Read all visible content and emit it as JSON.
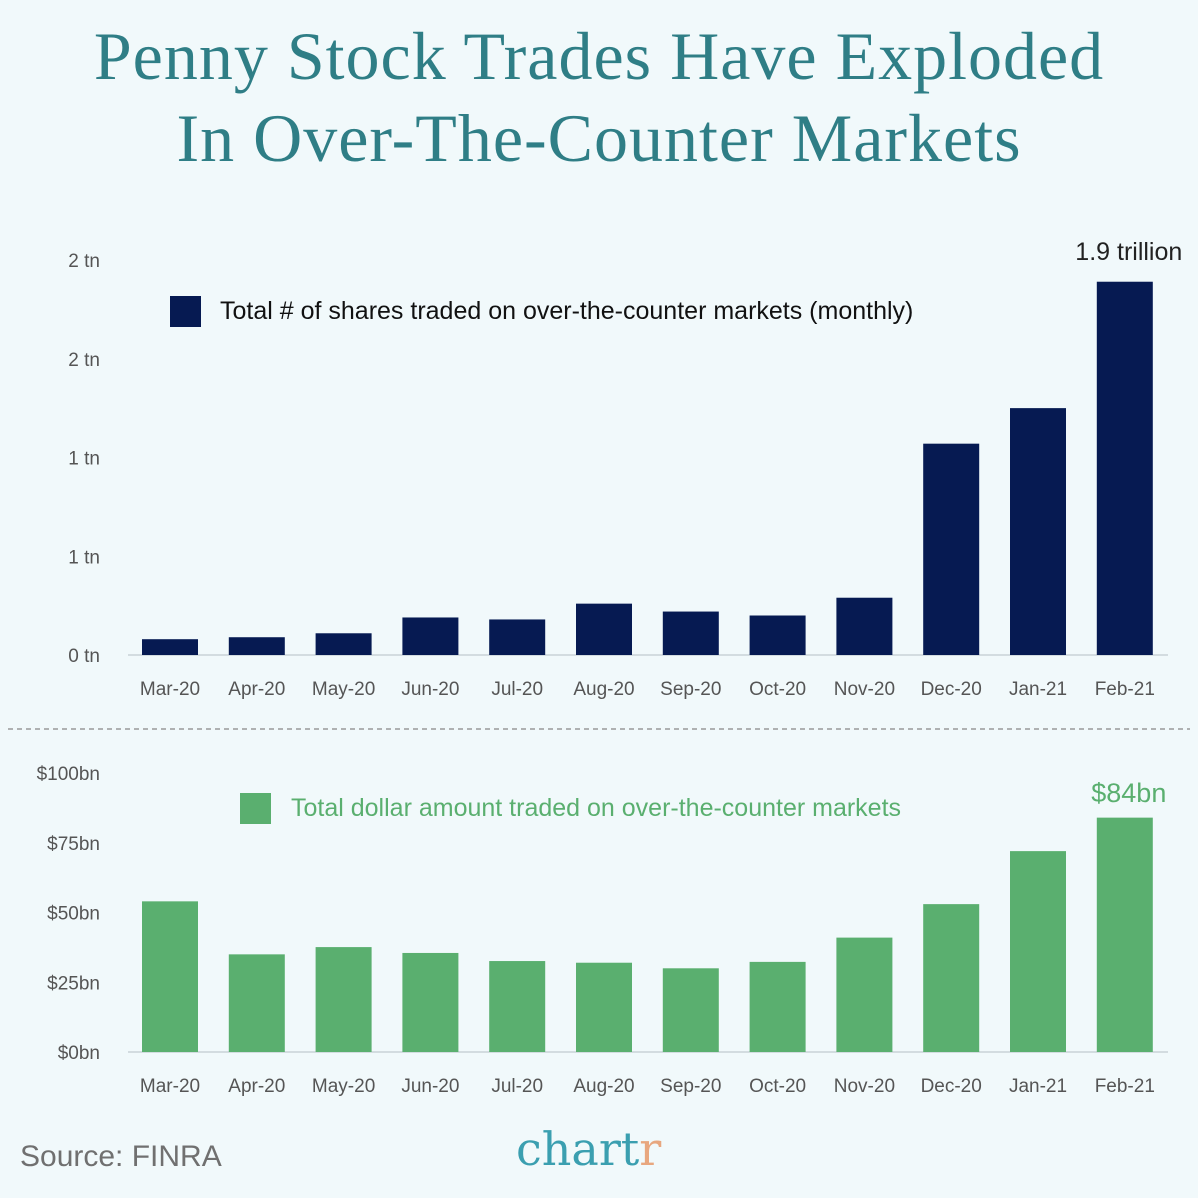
{
  "title": {
    "line1": "Penny Stock Trades Have Exploded",
    "line2": "In Over-The-Counter Markets"
  },
  "source": "Source: FINRA",
  "logo": {
    "main": "chart",
    "accent": "r"
  },
  "chart_data": [
    {
      "type": "bar",
      "legend": "Total # of shares traded on over-the-counter markets (monthly)",
      "legend_placement": "top-left",
      "color": "#061a52",
      "categories": [
        "Mar-20",
        "Apr-20",
        "May-20",
        "Jun-20",
        "Jul-20",
        "Aug-20",
        "Sep-20",
        "Oct-20",
        "Nov-20",
        "Dec-20",
        "Jan-21",
        "Feb-21"
      ],
      "values": [
        0.08,
        0.09,
        0.11,
        0.19,
        0.18,
        0.26,
        0.22,
        0.2,
        0.29,
        1.07,
        1.25,
        1.89
      ],
      "unit": "trillion shares",
      "yticks": [
        0,
        0.5,
        1,
        1.5,
        2
      ],
      "ytick_labels": [
        "0 tn",
        "1 tn",
        "1 tn",
        "2 tn",
        "2 tn"
      ],
      "ylim": [
        0,
        2
      ],
      "annotation": {
        "index": 11,
        "text": "1.9 trillion"
      },
      "grid": false
    },
    {
      "type": "bar",
      "legend": "Total dollar amount traded on over-the-counter markets",
      "legend_placement": "top-left",
      "color": "#5aaf6f",
      "categories": [
        "Mar-20",
        "Apr-20",
        "May-20",
        "Jun-20",
        "Jul-20",
        "Aug-20",
        "Sep-20",
        "Oct-20",
        "Nov-20",
        "Dec-20",
        "Jan-21",
        "Feb-21"
      ],
      "values": [
        54,
        35,
        37.6,
        35.5,
        32.6,
        32,
        30,
        32.3,
        41,
        53,
        72,
        84
      ],
      "unit": "$bn",
      "yticks": [
        0,
        25,
        50,
        75,
        100
      ],
      "ytick_labels": [
        "$0bn",
        "$25bn",
        "$50bn",
        "$75bn",
        "$100bn"
      ],
      "ylim": [
        0,
        100
      ],
      "annotation": {
        "index": 11,
        "text": "$84bn"
      },
      "grid": false
    }
  ]
}
